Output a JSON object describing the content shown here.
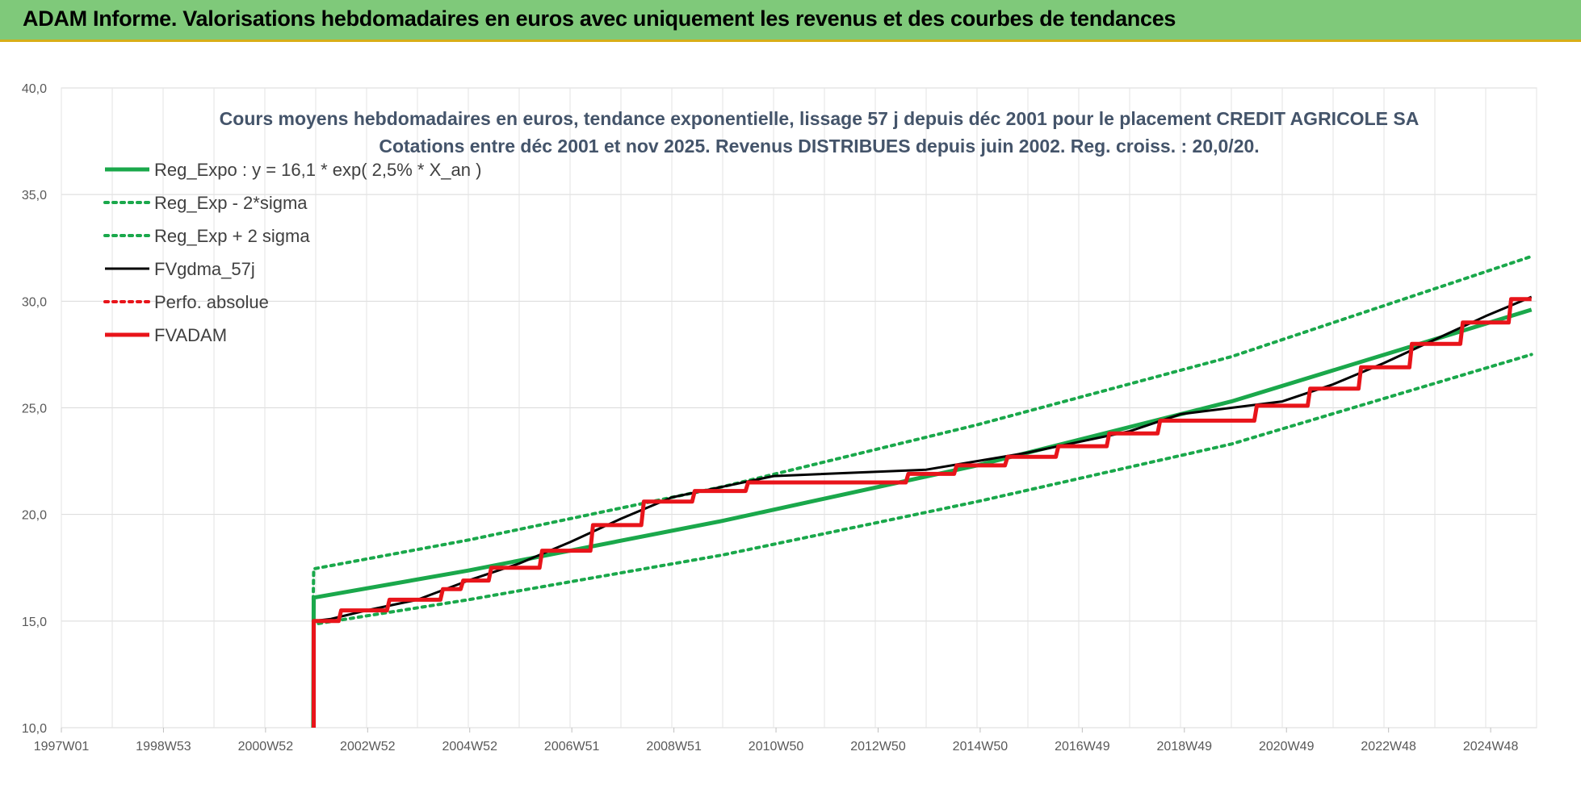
{
  "header": {
    "title": "ADAM Informe. Valorisations hebdomadaires en euros avec uniquement les revenus et des courbes de tendances"
  },
  "colors": {
    "header_bg": "#7fc97a",
    "trend_green": "#1aa84b",
    "fv_black": "#000000",
    "fvadam_red": "#e8141a",
    "title_color": "#44546a"
  },
  "chart_data": {
    "type": "line",
    "title": [
      "Cours moyens hebdomadaires en euros, tendance exponentielle, lissage 57 j depuis déc 2001 pour le placement CREDIT AGRICOLE SA",
      "Cotations entre déc 2001 et nov 2025. Revenus DISTRIBUES depuis juin 2002. Reg. croiss. : 20,0/20."
    ],
    "y_ticks": [
      "40,0",
      "35,0",
      "30,0",
      "25,0",
      "20,0",
      "15,0",
      "10,0"
    ],
    "x_ticks": [
      "1997W01",
      "1998W53",
      "2000W52",
      "2002W52",
      "2004W52",
      "2006W51",
      "2008W51",
      "2010W50",
      "2012W50",
      "2014W50",
      "2016W49",
      "2018W49",
      "2020W49",
      "2022W48",
      "2024W48"
    ],
    "ylim": [
      10,
      40
    ],
    "xlim": [
      1997.0,
      2026.0
    ],
    "grid": true,
    "legend_position": "top-left",
    "series": [
      {
        "name": "Reg_Expo : y = 16,1 * exp( 2,5% *  X_an )",
        "style": "solid-thick",
        "color": "#1aa84b",
        "x": [
          2001.95,
          2001.96,
          2005,
          2010,
          2015,
          2020,
          2025.9
        ],
        "y": [
          10.0,
          16.1,
          17.37,
          19.7,
          22.3,
          25.3,
          29.6
        ]
      },
      {
        "name": "Reg_Exp - 2*sigma",
        "style": "dotted",
        "color": "#1aa84b",
        "x": [
          2001.95,
          2001.96,
          2005,
          2010,
          2015,
          2020,
          2025.9
        ],
        "y": [
          15.0,
          14.85,
          16.0,
          18.1,
          20.6,
          23.3,
          27.5
        ]
      },
      {
        "name": "Reg_Exp + 2 sigma",
        "style": "dotted",
        "color": "#1aa84b",
        "x": [
          2001.95,
          2001.96,
          2005,
          2010,
          2015,
          2020,
          2025.9
        ],
        "y": [
          16.0,
          17.45,
          18.8,
          21.3,
          24.2,
          27.4,
          32.1
        ]
      },
      {
        "name": "FVgdma_57j",
        "style": "solid",
        "color": "#000000",
        "x": [
          2001.96,
          2002.3,
          2003,
          2004,
          2005,
          2006,
          2007,
          2008,
          2009,
          2010,
          2011,
          2014,
          2015,
          2016,
          2017,
          2018,
          2019,
          2021,
          2022,
          2023,
          2024,
          2025,
          2025.9
        ],
        "y": [
          15.0,
          15.1,
          15.5,
          16.0,
          16.9,
          17.7,
          18.7,
          19.8,
          20.8,
          21.3,
          21.8,
          22.1,
          22.5,
          22.9,
          23.4,
          23.9,
          24.7,
          25.3,
          26.1,
          27.1,
          28.2,
          29.3,
          30.2
        ]
      },
      {
        "name": "Perfo. absolue",
        "style": "dotted",
        "color": "#e8141a",
        "x": [],
        "y": []
      },
      {
        "name": "FVADAM",
        "style": "step-thick",
        "color": "#e8141a",
        "x": [
          2001.96,
          2001.961,
          2002.45,
          2002.5,
          2003.4,
          2003.45,
          2004.45,
          2004.5,
          2004.85,
          2004.9,
          2005.4,
          2005.45,
          2006.4,
          2006.45,
          2007.4,
          2007.45,
          2008.4,
          2008.45,
          2009.4,
          2009.45,
          2010.45,
          2010.5,
          2013.6,
          2013.65,
          2014.55,
          2014.6,
          2015.55,
          2015.6,
          2016.55,
          2016.6,
          2017.55,
          2017.6,
          2018.55,
          2018.6,
          2020.45,
          2020.5,
          2021.5,
          2021.55,
          2022.5,
          2022.55,
          2023.5,
          2023.55,
          2024.5,
          2024.55,
          2025.45,
          2025.5,
          2025.9
        ],
        "y": [
          10.0,
          15.0,
          15.0,
          15.5,
          15.5,
          16.0,
          16.0,
          16.5,
          16.5,
          16.9,
          16.9,
          17.5,
          17.5,
          18.3,
          18.3,
          19.5,
          19.5,
          20.6,
          20.6,
          21.1,
          21.1,
          21.5,
          21.5,
          21.9,
          21.9,
          22.3,
          22.3,
          22.7,
          22.7,
          23.2,
          23.2,
          23.8,
          23.8,
          24.4,
          24.4,
          25.1,
          25.1,
          25.9,
          25.9,
          26.9,
          26.9,
          28.0,
          28.0,
          29.0,
          29.0,
          30.1,
          30.1
        ]
      }
    ]
  }
}
